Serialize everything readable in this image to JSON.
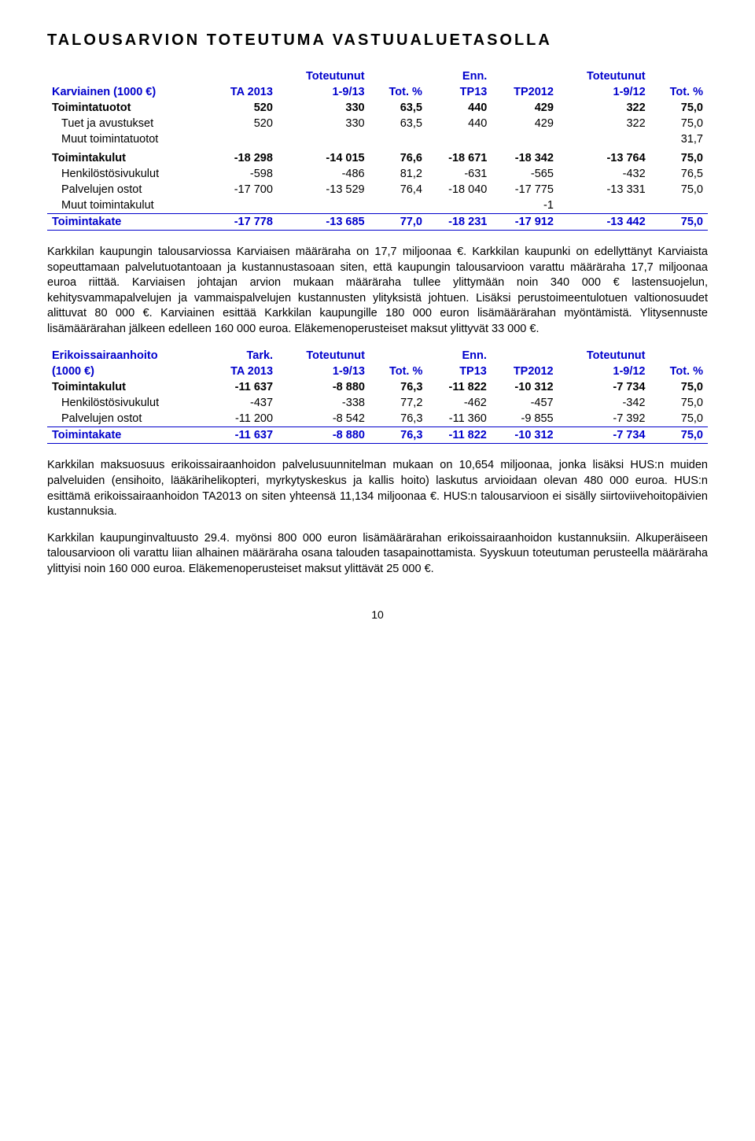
{
  "title": "TALOUSARVION TOTEUTUMA VASTUUALUETASOLLA",
  "table1": {
    "hdr_top": [
      "",
      "",
      "Toteutunut",
      "",
      "Enn.",
      "",
      "Toteutunut",
      ""
    ],
    "hdr": [
      "Karviainen (1000 €)",
      "TA 2013",
      "1-9/13",
      "Tot. %",
      "TP13",
      "TP2012",
      "1-9/12",
      "Tot. %"
    ],
    "rows": [
      {
        "label": "Toimintatuotot",
        "c": [
          "520",
          "330",
          "63,5",
          "440",
          "429",
          "322",
          "75,0"
        ],
        "bold": true
      },
      {
        "label": "Tuet ja avustukset",
        "c": [
          "520",
          "330",
          "63,5",
          "440",
          "429",
          "322",
          "75,0"
        ],
        "indent": true
      },
      {
        "label": "Muut toimintatuotot",
        "c": [
          "",
          "",
          "",
          "",
          "",
          "",
          "31,7"
        ],
        "indent": true
      },
      {
        "label": "",
        "c": [
          "",
          "",
          "",
          "",
          "",
          "",
          ""
        ]
      },
      {
        "label": "Toimintakulut",
        "c": [
          "-18 298",
          "-14 015",
          "76,6",
          "-18 671",
          "-18 342",
          "-13 764",
          "75,0"
        ],
        "bold": true
      },
      {
        "label": "Henkilöstösivukulut",
        "c": [
          "-598",
          "-486",
          "81,2",
          "-631",
          "-565",
          "-432",
          "76,5"
        ],
        "indent": true
      },
      {
        "label": "Palvelujen ostot",
        "c": [
          "-17 700",
          "-13 529",
          "76,4",
          "-18 040",
          "-17 775",
          "-13 331",
          "75,0"
        ],
        "indent": true
      },
      {
        "label": "Muut toimintakulut",
        "c": [
          "",
          "",
          "",
          "",
          "-1",
          "",
          ""
        ],
        "indent": true
      }
    ],
    "sum": {
      "label": "Toimintakate",
      "c": [
        "-17 778",
        "-13 685",
        "77,0",
        "-18 231",
        "-17 912",
        "-13 442",
        "75,0"
      ]
    }
  },
  "para1": "Karkkilan kaupungin talousarviossa Karviaisen määräraha on 17,7 miljoonaa €. Karkkilan kaupunki on edellyttänyt Karviaista sopeuttamaan palvelutuotantoaan ja kustannustasoaan siten, että kaupungin talousarvioon varattu määräraha 17,7 miljoonaa euroa riittää. Karviaisen johtajan arvion mukaan määräraha tullee ylittymään noin 340 000 € lastensuojelun, kehitysvammapalvelujen ja vammaispalvelujen kustannusten ylityksistä johtuen. Lisäksi perustoimeentulotuen valtionosuudet alittuvat 80 000 €. Karviainen esittää Karkkilan kaupungille 180 000 euron lisämäärärahan myöntämistä. Ylitysennuste lisämäärärahan jälkeen edelleen 160 000 euroa. Eläkemenoperusteiset maksut ylittyvät 33 000 €.",
  "table2": {
    "hdr_top": [
      "Erikoissairaanhoito",
      "Tark.",
      "Toteutunut",
      "",
      "Enn.",
      "",
      "Toteutunut",
      ""
    ],
    "hdr": [
      "(1000 €)",
      "TA 2013",
      "1-9/13",
      "Tot. %",
      "TP13",
      "TP2012",
      "1-9/12",
      "Tot. %"
    ],
    "rows": [
      {
        "label": "Toimintakulut",
        "c": [
          "-11 637",
          "-8 880",
          "76,3",
          "-11 822",
          "-10 312",
          "-7 734",
          "75,0"
        ],
        "bold": true
      },
      {
        "label": "Henkilöstösivukulut",
        "c": [
          "-437",
          "-338",
          "77,2",
          "-462",
          "-457",
          "-342",
          "75,0"
        ],
        "indent": true
      },
      {
        "label": "Palvelujen ostot",
        "c": [
          "-11 200",
          "-8 542",
          "76,3",
          "-11 360",
          "-9 855",
          "-7 392",
          "75,0"
        ],
        "indent": true
      }
    ],
    "sum": {
      "label": "Toimintakate",
      "c": [
        "-11 637",
        "-8 880",
        "76,3",
        "-11 822",
        "-10 312",
        "-7 734",
        "75,0"
      ]
    }
  },
  "para2": "Karkkilan maksuosuus erikoissairaanhoidon palvelusuunnitelman mukaan on 10,654 miljoonaa, jonka lisäksi HUS:n muiden palveluiden (ensihoito, lääkärihelikopteri, myrkytyskeskus ja kallis hoito) laskutus arvioidaan olevan 480 000 euroa. HUS:n esittämä erikoissairaanhoidon TA2013 on siten yhteensä 11,134 miljoonaa €. HUS:n talousarvioon ei sisälly siirtoviivehoitopäivien kustannuksia.",
  "para3": "Karkkilan kaupunginvaltuusto 29.4. myönsi 800 000 euron lisämäärärahan erikoissairaanhoidon kustannuksiin. Alkuperäiseen talousarvioon oli varattu liian alhainen määräraha osana talouden tasapainottamista. Syyskuun toteutuman perusteella määräraha ylittyisi noin 160 000 euroa. Eläkemenoperusteiset maksut ylittävät 25 000 €.",
  "pagenum": "10"
}
